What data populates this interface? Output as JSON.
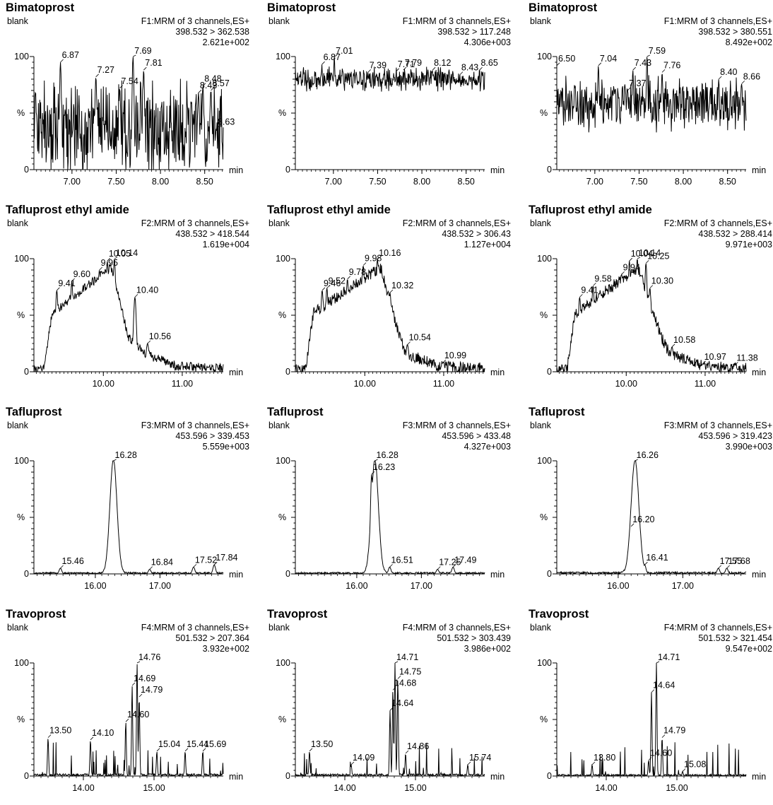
{
  "chart_data": [
    {
      "type": "line",
      "title": "Bimatoprost",
      "sample": "blank",
      "function": "F1:MRM of 3 channels,ES+",
      "transition": "398.532 > 362.538",
      "intensity": "2.621e+002",
      "ylabel": "%",
      "xlabel": "min",
      "ytick_top": "100",
      "ytick_bottom": "0",
      "xlim": [
        6.57,
        8.71
      ],
      "ylim": [
        0,
        100
      ],
      "xticks": [
        "7.00",
        "7.50",
        "8.00",
        "8.50"
      ],
      "profile": "noise",
      "baseline": 35,
      "noise": 58,
      "seed": 11,
      "peaks": [
        {
          "x": 6.87,
          "y": 95,
          "label": "6.87"
        },
        {
          "x": 7.27,
          "y": 82,
          "label": "7.27"
        },
        {
          "x": 7.54,
          "y": 72,
          "label": "7.54"
        },
        {
          "x": 7.69,
          "y": 100,
          "label": "7.69"
        },
        {
          "x": 7.81,
          "y": 88,
          "label": "7.81"
        },
        {
          "x": 8.43,
          "y": 68,
          "label": "8.43"
        },
        {
          "x": 8.48,
          "y": 74,
          "label": "8.48"
        },
        {
          "x": 8.57,
          "y": 70,
          "label": "8.57"
        },
        {
          "x": 8.63,
          "y": 36,
          "label": "8.63"
        }
      ]
    },
    {
      "type": "line",
      "title": "Bimatoprost",
      "sample": "blank",
      "function": "F1:MRM of 3 channels,ES+",
      "transition": "398.532 > 117.248",
      "intensity": "4.306e+003",
      "ylabel": "%",
      "xlabel": "min",
      "ytick_top": "100",
      "ytick_bottom": "0",
      "xlim": [
        6.57,
        8.71
      ],
      "ylim": [
        0,
        100
      ],
      "xticks": [
        "7.00",
        "7.50",
        "8.00",
        "8.50"
      ],
      "profile": "noise",
      "baseline": 80,
      "noise": 14,
      "seed": 23,
      "peaks": [
        {
          "x": 6.87,
          "y": 93,
          "label": "6.87"
        },
        {
          "x": 7.01,
          "y": 100,
          "label": "7.01"
        },
        {
          "x": 7.39,
          "y": 86,
          "label": "7.39"
        },
        {
          "x": 7.71,
          "y": 87,
          "label": "7.71"
        },
        {
          "x": 7.79,
          "y": 88,
          "label": "7.79"
        },
        {
          "x": 8.12,
          "y": 88,
          "label": "8.12"
        },
        {
          "x": 8.43,
          "y": 84,
          "label": "8.43"
        },
        {
          "x": 8.65,
          "y": 88,
          "label": "8.65"
        }
      ]
    },
    {
      "type": "line",
      "title": "Bimatoprost",
      "sample": "blank",
      "function": "F1:MRM of 3 channels,ES+",
      "transition": "398.532 > 380.551",
      "intensity": "8.492e+002",
      "ylabel": "%",
      "xlabel": "min",
      "ytick_top": "100",
      "ytick_bottom": "0",
      "xlim": [
        6.57,
        8.71
      ],
      "ylim": [
        0,
        100
      ],
      "xticks": [
        "7.00",
        "7.50",
        "8.00",
        "8.50"
      ],
      "profile": "noise",
      "baseline": 58,
      "noise": 32,
      "seed": 37,
      "peaks": [
        {
          "x": 6.5,
          "y": 92,
          "label": "6.50"
        },
        {
          "x": 7.04,
          "y": 92,
          "label": "7.04"
        },
        {
          "x": 7.37,
          "y": 70,
          "label": "7.37"
        },
        {
          "x": 7.43,
          "y": 88,
          "label": "7.43"
        },
        {
          "x": 7.59,
          "y": 100,
          "label": "7.59"
        },
        {
          "x": 7.76,
          "y": 86,
          "label": "7.76"
        },
        {
          "x": 8.4,
          "y": 80,
          "label": "8.40"
        },
        {
          "x": 8.66,
          "y": 76,
          "label": "8.66"
        }
      ]
    },
    {
      "type": "line",
      "title": "Tafluprost ethyl amide",
      "sample": "blank",
      "function": "F2:MRM of 3 channels,ES+",
      "transition": "438.532 > 418.544",
      "intensity": "1.619e+004",
      "ylabel": "%",
      "xlabel": "min",
      "ytick_top": "100",
      "ytick_bottom": "0",
      "xlim": [
        9.12,
        11.52
      ],
      "ylim": [
        0,
        100
      ],
      "xticks": [
        "10.00",
        "11.00"
      ],
      "profile": "plateau",
      "shape": [
        9.12,
        9.25,
        9.35,
        10.1,
        10.32,
        10.52,
        10.9,
        11.52
      ],
      "noise": 4,
      "seed": 41,
      "peaks": [
        {
          "x": 9.41,
          "y": 72,
          "label": "9.41"
        },
        {
          "x": 9.6,
          "y": 80,
          "label": "9.60"
        },
        {
          "x": 9.95,
          "y": 90,
          "label": "9.95"
        },
        {
          "x": 10.05,
          "y": 98,
          "label": "10.05"
        },
        {
          "x": 10.14,
          "y": 100,
          "label": "10.14"
        },
        {
          "x": 10.4,
          "y": 66,
          "label": "10.40"
        },
        {
          "x": 10.56,
          "y": 25,
          "label": "10.56"
        }
      ]
    },
    {
      "type": "line",
      "title": "Tafluprost ethyl amide",
      "sample": "blank",
      "function": "F2:MRM of 3 channels,ES+",
      "transition": "438.532 > 306.43",
      "intensity": "1.127e+004",
      "ylabel": "%",
      "xlabel": "min",
      "ytick_top": "100",
      "ytick_bottom": "0",
      "xlim": [
        9.12,
        11.52
      ],
      "ylim": [
        0,
        100
      ],
      "xticks": [
        "10.00",
        "11.00"
      ],
      "profile": "plateau",
      "shape": [
        9.12,
        9.25,
        9.35,
        10.2,
        10.45,
        10.52,
        10.9,
        11.52
      ],
      "noise": 5,
      "seed": 53,
      "peaks": [
        {
          "x": 9.46,
          "y": 72,
          "label": "9.46"
        },
        {
          "x": 9.52,
          "y": 74,
          "label": "9.52"
        },
        {
          "x": 9.78,
          "y": 82,
          "label": "9.78"
        },
        {
          "x": 9.98,
          "y": 94,
          "label": "9.98"
        },
        {
          "x": 10.16,
          "y": 100,
          "label": "10.16"
        },
        {
          "x": 10.32,
          "y": 70,
          "label": "10.32"
        },
        {
          "x": 10.54,
          "y": 24,
          "label": "10.54"
        },
        {
          "x": 10.99,
          "y": 8,
          "label": "10.99"
        }
      ]
    },
    {
      "type": "line",
      "title": "Tafluprost ethyl amide",
      "sample": "blank",
      "function": "F2:MRM of 3 channels,ES+",
      "transition": "438.532 > 288.414",
      "intensity": "9.971e+003",
      "ylabel": "%",
      "xlabel": "min",
      "ytick_top": "100",
      "ytick_bottom": "0",
      "xlim": [
        9.12,
        11.52
      ],
      "ylim": [
        0,
        100
      ],
      "xticks": [
        "10.00",
        "11.00"
      ],
      "profile": "plateau",
      "shape": [
        9.12,
        9.25,
        9.35,
        10.15,
        10.45,
        10.55,
        10.95,
        11.52
      ],
      "noise": 5,
      "seed": 61,
      "peaks": [
        {
          "x": 9.41,
          "y": 66,
          "label": "9.41"
        },
        {
          "x": 9.58,
          "y": 76,
          "label": "9.58"
        },
        {
          "x": 9.94,
          "y": 86,
          "label": "9.94"
        },
        {
          "x": 10.04,
          "y": 98,
          "label": "10.04"
        },
        {
          "x": 10.14,
          "y": 100,
          "label": "10.14"
        },
        {
          "x": 10.25,
          "y": 96,
          "label": "10.25"
        },
        {
          "x": 10.3,
          "y": 74,
          "label": "10.30"
        },
        {
          "x": 10.58,
          "y": 22,
          "label": "10.58"
        },
        {
          "x": 10.97,
          "y": 7,
          "label": "10.97"
        },
        {
          "x": 11.38,
          "y": 6,
          "label": "11.38"
        }
      ]
    },
    {
      "type": "line",
      "title": "Tafluprost",
      "sample": "blank",
      "function": "F3:MRM of 3 channels,ES+",
      "transition": "453.596 > 339.453",
      "intensity": "5.559e+003",
      "ylabel": "%",
      "xlabel": "min",
      "ytick_top": "100",
      "ytick_bottom": "0",
      "xlim": [
        15.05,
        17.98
      ],
      "ylim": [
        0,
        100
      ],
      "xticks": [
        "16.00",
        "17.00"
      ],
      "profile": "peak",
      "peak_x": 16.28,
      "peak_w": 0.055,
      "noise": 1.5,
      "seed": 71,
      "peaks": [
        {
          "x": 15.46,
          "y": 5,
          "label": "15.46"
        },
        {
          "x": 16.28,
          "y": 100,
          "label": "16.28"
        },
        {
          "x": 16.84,
          "y": 4,
          "label": "16.84"
        },
        {
          "x": 17.52,
          "y": 6,
          "label": "17.52"
        },
        {
          "x": 17.84,
          "y": 8,
          "label": "17.84"
        }
      ]
    },
    {
      "type": "line",
      "title": "Tafluprost",
      "sample": "blank",
      "function": "F3:MRM of 3 channels,ES+",
      "transition": "453.596 > 433.48",
      "intensity": "4.327e+003",
      "ylabel": "%",
      "xlabel": "min",
      "ytick_top": "100",
      "ytick_bottom": "0",
      "xlim": [
        15.05,
        17.98
      ],
      "ylim": [
        0,
        100
      ],
      "xticks": [
        "16.00",
        "17.00"
      ],
      "profile": "peak",
      "peak_x": 16.28,
      "peak_w": 0.055,
      "noise": 1.5,
      "seed": 83,
      "peaks": [
        {
          "x": 16.23,
          "y": 88,
          "label": "16.23"
        },
        {
          "x": 16.28,
          "y": 100,
          "label": "16.28"
        },
        {
          "x": 16.51,
          "y": 6,
          "label": "16.51"
        },
        {
          "x": 17.25,
          "y": 4,
          "label": "17.25"
        },
        {
          "x": 17.49,
          "y": 6,
          "label": "17.49"
        }
      ]
    },
    {
      "type": "line",
      "title": "Tafluprost",
      "sample": "blank",
      "function": "F3:MRM of 3 channels,ES+",
      "transition": "453.596 > 319.423",
      "intensity": "3.990e+003",
      "ylabel": "%",
      "xlabel": "min",
      "ytick_top": "100",
      "ytick_bottom": "0",
      "xlim": [
        15.05,
        17.98
      ],
      "ylim": [
        0,
        100
      ],
      "xticks": [
        "16.00",
        "17.00"
      ],
      "profile": "peak",
      "peak_x": 16.26,
      "peak_w": 0.06,
      "noise": 1.8,
      "seed": 97,
      "peaks": [
        {
          "x": 16.2,
          "y": 42,
          "label": "16.20"
        },
        {
          "x": 16.26,
          "y": 100,
          "label": "16.26"
        },
        {
          "x": 16.41,
          "y": 8,
          "label": "16.41"
        },
        {
          "x": 17.55,
          "y": 5,
          "label": "17.55"
        },
        {
          "x": 17.68,
          "y": 5,
          "label": "17.68"
        }
      ]
    },
    {
      "type": "line",
      "title": "Travoprost",
      "sample": "blank",
      "function": "F4:MRM of 3 channels,ES+",
      "transition": "501.532 > 207.364",
      "intensity": "3.932e+002",
      "ylabel": "%",
      "xlabel": "min",
      "ytick_top": "100",
      "ytick_bottom": "0",
      "xlim": [
        13.3,
        15.98
      ],
      "ylim": [
        0,
        100
      ],
      "xticks": [
        "14.00",
        "15.00"
      ],
      "profile": "spikes",
      "noise": 2,
      "seed": 101,
      "peaks": [
        {
          "x": 13.5,
          "y": 34,
          "label": "13.50"
        },
        {
          "x": 14.1,
          "y": 32,
          "label": "14.10"
        },
        {
          "x": 14.6,
          "y": 48,
          "label": "14.60"
        },
        {
          "x": 14.69,
          "y": 80,
          "label": "14.69"
        },
        {
          "x": 14.76,
          "y": 100,
          "label": "14.76"
        },
        {
          "x": 14.79,
          "y": 70,
          "label": "14.79"
        },
        {
          "x": 15.04,
          "y": 22,
          "label": "15.04"
        },
        {
          "x": 15.44,
          "y": 22,
          "label": "15.44"
        },
        {
          "x": 15.69,
          "y": 22,
          "label": "15.69"
        }
      ]
    },
    {
      "type": "line",
      "title": "Travoprost",
      "sample": "blank",
      "function": "F4:MRM of 3 channels,ES+",
      "transition": "501.532 > 303.439",
      "intensity": "3.986e+002",
      "ylabel": "%",
      "xlabel": "min",
      "ytick_top": "100",
      "ytick_bottom": "0",
      "xlim": [
        13.3,
        15.98
      ],
      "ylim": [
        0,
        100
      ],
      "xticks": [
        "14.00",
        "15.00"
      ],
      "profile": "spikes",
      "noise": 2,
      "seed": 113,
      "peaks": [
        {
          "x": 13.5,
          "y": 22,
          "label": "13.50"
        },
        {
          "x": 14.09,
          "y": 10,
          "label": "14.09"
        },
        {
          "x": 14.64,
          "y": 58,
          "label": "14.64"
        },
        {
          "x": 14.68,
          "y": 76,
          "label": "14.68"
        },
        {
          "x": 14.71,
          "y": 100,
          "label": "14.71"
        },
        {
          "x": 14.75,
          "y": 86,
          "label": "14.75"
        },
        {
          "x": 14.86,
          "y": 20,
          "label": "14.86"
        },
        {
          "x": 15.74,
          "y": 10,
          "label": "15.74"
        }
      ]
    },
    {
      "type": "line",
      "title": "Travoprost",
      "sample": "blank",
      "function": "F4:MRM of 3 channels,ES+",
      "transition": "501.532 > 321.454",
      "intensity": "9.547e+002",
      "ylabel": "%",
      "xlabel": "min",
      "ytick_top": "100",
      "ytick_bottom": "0",
      "xlim": [
        13.3,
        15.98
      ],
      "ylim": [
        0,
        100
      ],
      "xticks": [
        "14.00",
        "15.00"
      ],
      "profile": "spikes",
      "noise": 1.5,
      "seed": 127,
      "peaks": [
        {
          "x": 13.8,
          "y": 10,
          "label": "13.80"
        },
        {
          "x": 14.6,
          "y": 14,
          "label": "14.60"
        },
        {
          "x": 14.64,
          "y": 74,
          "label": "14.64"
        },
        {
          "x": 14.71,
          "y": 100,
          "label": "14.71"
        },
        {
          "x": 14.79,
          "y": 34,
          "label": "14.79"
        },
        {
          "x": 15.08,
          "y": 4,
          "label": "15.08"
        }
      ]
    }
  ]
}
